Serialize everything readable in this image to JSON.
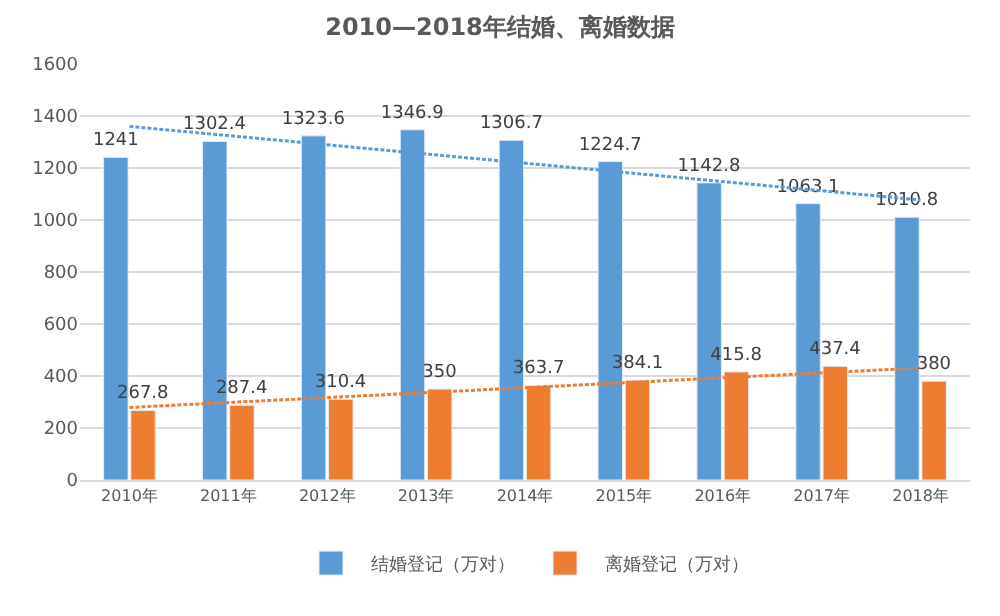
{
  "chart_data": {
    "type": "bar",
    "title": "2010—2018年结婚、离婚数据",
    "categories": [
      "2010年",
      "2011年",
      "2012年",
      "2013年",
      "2014年",
      "2015年",
      "2016年",
      "2017年",
      "2018年"
    ],
    "series": [
      {
        "name": "结婚登记（万对）",
        "color": "#5b9bd5",
        "values": [
          1241,
          1302.4,
          1323.6,
          1346.9,
          1306.7,
          1224.7,
          1142.8,
          1063.1,
          1010.8
        ],
        "value_labels": [
          "1241",
          "1302.4",
          "1323.6",
          "1346.9",
          "1306.7",
          "1224.7",
          "1142.8",
          "1063.1",
          "1010.8"
        ]
      },
      {
        "name": "离婚登记（万对）",
        "color": "#ed7d31",
        "values": [
          267.8,
          287.4,
          310.4,
          350,
          363.7,
          384.1,
          415.8,
          437.4,
          380
        ],
        "value_labels": [
          "267.8",
          "287.4",
          "310.4",
          "350",
          "363.7",
          "384.1",
          "415.8",
          "437.4",
          "380"
        ]
      },
      {
        "type": "line",
        "color": "#5b9bd5",
        "line_style": "dotted",
        "x": [
          "2010年",
          "2018年"
        ],
        "values": [
          1360,
          1077
        ]
      },
      {
        "type": "line",
        "color": "#ed7d31",
        "line_style": "dotted",
        "x": [
          "2010年",
          "2018年"
        ],
        "values": [
          279,
          431
        ]
      }
    ],
    "ylim": [
      0,
      1600
    ],
    "yticks": [
      0,
      200,
      400,
      600,
      800,
      1000,
      1200,
      1400,
      1600
    ],
    "grid": "y",
    "legend": "bottom"
  }
}
